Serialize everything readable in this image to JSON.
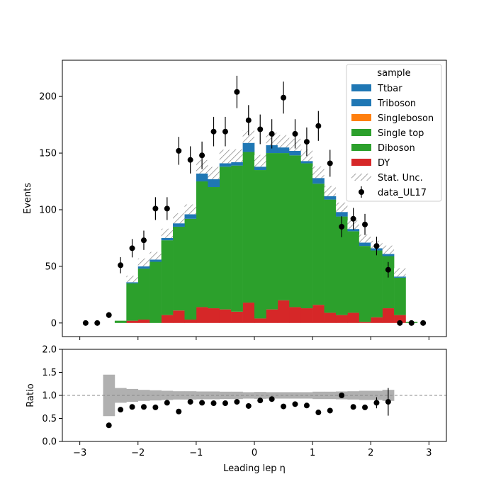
{
  "chart_data": [
    {
      "type": "bar",
      "stacked": true,
      "histtype": "stacked-step-histogram",
      "x_bin_edges": [
        -3.0,
        -2.8,
        -2.6,
        -2.4,
        -2.2,
        -2.0,
        -1.8,
        -1.6,
        -1.4,
        -1.2,
        -1.0,
        -0.8,
        -0.6,
        -0.4,
        -0.2,
        0.0,
        0.2,
        0.4,
        0.6,
        0.8,
        1.0,
        1.2,
        1.4,
        1.6,
        1.8,
        2.0,
        2.2,
        2.4,
        2.6,
        2.8,
        3.0
      ],
      "xlim": [
        -3.3,
        3.3
      ],
      "ylim": [
        -12,
        232
      ],
      "ylabel": "Events",
      "xlabel": "",
      "yticks": [
        0,
        50,
        100,
        150,
        200
      ],
      "legend_title": "sample",
      "legend_position": "top-right",
      "series": [
        {
          "name": "DY",
          "color": "#d62728",
          "values": [
            0,
            0,
            0,
            0,
            2,
            3,
            0,
            7,
            11,
            3,
            14,
            13,
            12,
            10,
            18,
            4,
            12,
            20,
            14,
            13,
            16,
            9,
            7,
            9,
            1,
            5,
            13,
            7,
            0,
            0
          ]
        },
        {
          "name": "Diboson",
          "color": "#2ca02c",
          "values": [
            0,
            0,
            0,
            2,
            33,
            45,
            54,
            66,
            74,
            89,
            111,
            107,
            126,
            129,
            133,
            131,
            138,
            130,
            134,
            128,
            107,
            100,
            87,
            72,
            67,
            59,
            46,
            33,
            1,
            0
          ]
        },
        {
          "name": "Single top",
          "color": "#2ca02c",
          "values": [
            0,
            0,
            0,
            0,
            0,
            0,
            0,
            0,
            0,
            0,
            0,
            0,
            0,
            0,
            0,
            0,
            0,
            0,
            0,
            0,
            0,
            0,
            0,
            0,
            0,
            0,
            0,
            0,
            0,
            0
          ]
        },
        {
          "name": "Singleboson",
          "color": "#ff7f0e",
          "values": [
            0,
            0,
            0,
            0,
            0,
            0,
            0,
            0,
            0,
            0,
            0,
            0,
            0,
            0,
            0,
            0,
            0,
            0,
            0,
            0,
            0,
            0,
            0,
            0,
            0,
            0,
            0,
            0,
            0,
            0
          ]
        },
        {
          "name": "Triboson",
          "color": "#1f77b4",
          "values": [
            0,
            0,
            0,
            0,
            0,
            0,
            0,
            0,
            0,
            0,
            0,
            0,
            0,
            0,
            0,
            0,
            0,
            0,
            0,
            0,
            0,
            0,
            0,
            0,
            0,
            0,
            0,
            0,
            0,
            0
          ]
        },
        {
          "name": "Ttbar",
          "color": "#1f77b4",
          "values": [
            0,
            0,
            0,
            0,
            1,
            2,
            2,
            2,
            3,
            4,
            7,
            7,
            3,
            3,
            8,
            3,
            7,
            5,
            4,
            2,
            5,
            3,
            4,
            2,
            3,
            2,
            2,
            1,
            0,
            0
          ]
        }
      ],
      "stat_unc_label": "Stat. Unc.",
      "stat_unc_rel": [
        0,
        0,
        0,
        0,
        0.16,
        0.14,
        0.12,
        0.11,
        0.1,
        0.09,
        0.09,
        0.085,
        0.085,
        0.08,
        0.07,
        0.075,
        0.07,
        0.07,
        0.07,
        0.07,
        0.08,
        0.08,
        0.085,
        0.09,
        0.1,
        0.1,
        0.12,
        0.18,
        0,
        0
      ],
      "data": {
        "name": "data_UL17",
        "x": [
          -2.9,
          -2.7,
          -2.5,
          -2.3,
          -2.1,
          -1.9,
          -1.7,
          -1.5,
          -1.3,
          -1.1,
          -0.9,
          -0.7,
          -0.5,
          -0.3,
          -0.1,
          0.1,
          0.3,
          0.5,
          0.7,
          0.9,
          1.1,
          1.3,
          1.5,
          1.7,
          1.9,
          2.1,
          2.3,
          2.5,
          2.7,
          2.9
        ],
        "y": [
          0,
          0,
          7,
          51,
          66,
          73,
          101,
          101,
          152,
          144,
          148,
          169,
          169,
          204,
          179,
          171,
          167,
          199,
          167,
          160,
          174,
          141,
          85,
          92,
          87,
          68,
          47,
          0,
          0,
          0
        ]
      }
    },
    {
      "type": "scatter",
      "xlabel": "Leading lep η",
      "ylabel": "Ratio",
      "xlim": [
        -3.3,
        3.3
      ],
      "ylim": [
        0.0,
        2.0
      ],
      "yticks": [
        0.0,
        0.5,
        1.0,
        1.5,
        2.0
      ],
      "xticks": [
        -3,
        -2,
        -1,
        0,
        1,
        2,
        3
      ],
      "reference_line": 1.0,
      "unc_band_rel": [
        0,
        0,
        0.45,
        0.16,
        0.14,
        0.12,
        0.11,
        0.1,
        0.09,
        0.09,
        0.085,
        0.085,
        0.08,
        0.08,
        0.07,
        0.075,
        0.07,
        0.07,
        0.07,
        0.07,
        0.08,
        0.08,
        0.085,
        0.09,
        0.1,
        0.1,
        0.12,
        0,
        0,
        0
      ],
      "ratio_x": [
        -2.5,
        -2.3,
        -2.1,
        -1.9,
        -1.7,
        -1.5,
        -1.3,
        -1.1,
        -0.9,
        -0.7,
        -0.5,
        -0.3,
        -0.1,
        0.1,
        0.3,
        0.5,
        0.7,
        0.9,
        1.1,
        1.3,
        1.5,
        1.7,
        1.9,
        2.1,
        2.3
      ],
      "ratio_y": [
        0.35,
        0.69,
        0.75,
        0.75,
        0.74,
        0.84,
        0.65,
        0.86,
        0.84,
        0.83,
        0.83,
        0.86,
        0.77,
        0.89,
        0.92,
        0.76,
        0.81,
        0.78,
        0.63,
        0.67,
        1.0,
        0.75,
        0.74,
        0.84,
        0.86
      ]
    }
  ],
  "colors": {
    "unc_band": "#b0b0b0",
    "ref_line": "#888888",
    "frame": "#000000"
  }
}
